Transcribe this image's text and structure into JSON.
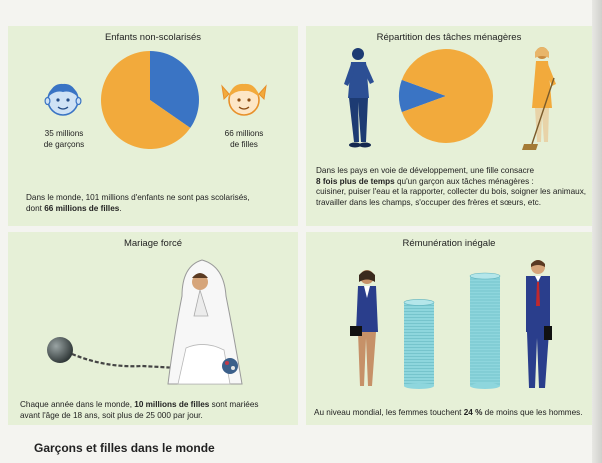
{
  "panels": {
    "children": {
      "title": "Enfants non-scolarisés",
      "boys_number": "35 millions",
      "boys_label": "de garçons",
      "girls_number": "66 millions",
      "girls_label": "de filles",
      "text_line1": "Dans le monde, 101 millions d'enfants ne sont pas scolarisés,",
      "text_line2_pre": "dont ",
      "text_line2_bold": "66 millions de filles",
      "text_line2_post": "."
    },
    "chores": {
      "title": "Répartition des tâches ménagères",
      "line1": "Dans les pays en voie de développement, une fille consacre",
      "line2_bold": "8 fois plus de temps",
      "line2_post": " qu'un garçon aux tâches ménagères :",
      "line3": "cuisiner, puiser l'eau et la rapporter, collecter du bois, soigner les animaux,",
      "line4": "travailler dans les champs, s'occuper des frères et sœurs, etc."
    },
    "marriage": {
      "title": "Mariage forcé",
      "line1_pre": "Chaque année dans le monde, ",
      "line1_bold": "10 millions de filles",
      "line1_post": " sont mariées",
      "line2": "avant l'âge de 18 ans, soit plus de 25 000 par jour."
    },
    "pay": {
      "title": "Rémunération inégale",
      "line_pre": "Au niveau mondial, les femmes touchent ",
      "line_bold": "24 %",
      "line_post": " de moins que les hommes."
    }
  },
  "caption": "Garçons et filles dans le monde",
  "chart_data": [
    {
      "type": "pie",
      "categories": [
        "garçons",
        "filles"
      ],
      "values": [
        35,
        66
      ],
      "colors": [
        "#3a74c4",
        "#f2aa3c"
      ]
    },
    {
      "type": "pie",
      "categories": [
        "garçon",
        "fille"
      ],
      "values": [
        1,
        8
      ],
      "colors": [
        "#3a74c4",
        "#f2aa3c"
      ]
    },
    {
      "type": "bar",
      "categories": [
        "femmes",
        "hommes"
      ],
      "values": [
        76,
        100
      ],
      "colors": [
        "#8ed6dd",
        "#8ed6dd"
      ]
    }
  ],
  "colors": {
    "panel_bg": "#e6f0d7",
    "blue": "#3a74c4",
    "orange": "#f2aa3c",
    "coin": "#8ed6dd"
  }
}
